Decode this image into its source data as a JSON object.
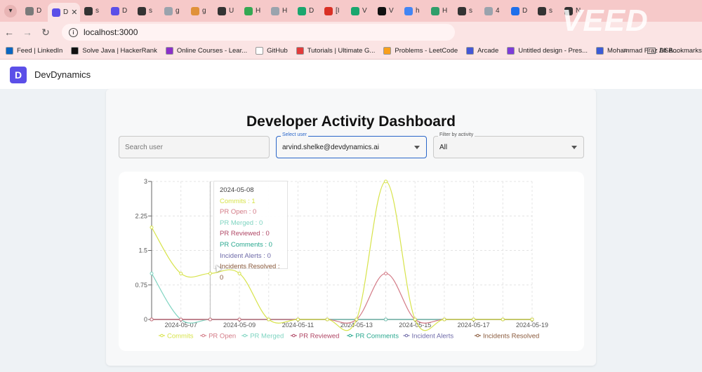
{
  "browser": {
    "tabs": [
      {
        "icon": "gear-icon",
        "color": "#7a7a7a",
        "label": "D"
      },
      {
        "icon": "app-icon",
        "color": "#5b4fe8",
        "label": "D",
        "active": true
      },
      {
        "icon": "github-icon",
        "color": "#333333",
        "label": "s"
      },
      {
        "icon": "devdynamics-icon",
        "color": "#5b4fe8",
        "label": "D"
      },
      {
        "icon": "github-icon",
        "color": "#333333",
        "label": "s"
      },
      {
        "icon": "globe-icon",
        "color": "#9aa3ad",
        "label": "g"
      },
      {
        "icon": "globe-icon",
        "color": "#e0913a",
        "label": "g"
      },
      {
        "icon": "github-icon",
        "color": "#333333",
        "label": "U"
      },
      {
        "icon": "app-icon",
        "color": "#34a853",
        "label": "H"
      },
      {
        "icon": "globe-icon",
        "color": "#9aa3ad",
        "label": "H"
      },
      {
        "icon": "app-icon",
        "color": "#1aa66e",
        "label": "D"
      },
      {
        "icon": "gmail-icon",
        "color": "#d93025",
        "label": "[I"
      },
      {
        "icon": "app-icon",
        "color": "#1aa66e",
        "label": "V"
      },
      {
        "icon": "app-icon",
        "color": "#111111",
        "label": "V"
      },
      {
        "icon": "google-icon",
        "color": "#4285f4",
        "label": "h"
      },
      {
        "icon": "app-icon",
        "color": "#2f9e6a",
        "label": "H"
      },
      {
        "icon": "github-icon",
        "color": "#333333",
        "label": "s"
      },
      {
        "icon": "globe-icon",
        "color": "#9aa3ad",
        "label": "4"
      },
      {
        "icon": "react-icon",
        "color": "#1f6feb",
        "label": "D"
      },
      {
        "icon": "github-icon",
        "color": "#333333",
        "label": "s"
      },
      {
        "icon": "app-icon",
        "color": "#333333",
        "label": "N"
      }
    ],
    "active_tab_close": "✕",
    "url": "localhost:3000",
    "bookmarks": [
      {
        "label": "Feed | LinkedIn",
        "color": "#0a66c2"
      },
      {
        "label": "Solve Java | HackerRank",
        "color": "#111111"
      },
      {
        "label": "Online Courses - Lear...",
        "color": "#8b2fc9"
      },
      {
        "label": "GitHub",
        "color": "#ffffff"
      },
      {
        "label": "Tutorials | Ultimate G...",
        "color": "#e23b3b"
      },
      {
        "label": "Problems - LeetCode",
        "color": "#f89f1b"
      },
      {
        "label": "Arcade",
        "color": "#4457d6"
      },
      {
        "label": "Untitled design - Pres...",
        "color": "#7d3cd9"
      },
      {
        "label": "Mohammad Fraz DSA...",
        "color": "#3b5bd6"
      }
    ],
    "bookmarks_more": "»",
    "all_bookmarks": "All Bookmarks",
    "watermark": "VEED"
  },
  "app": {
    "brand": "DevDynamics",
    "title": "Developer Activity Dashboard",
    "search": {
      "placeholder": "Search user"
    },
    "select_user": {
      "label": "Select user",
      "value": "arvind.shelke@devdynamics.ai"
    },
    "filter": {
      "label": "Filter by activity",
      "value": "All"
    }
  },
  "tooltip": {
    "date": "2024-05-08",
    "rows": [
      {
        "text": "Commits : 1",
        "color": "#d7e34a"
      },
      {
        "text": "PR Open : 0",
        "color": "#d37a86"
      },
      {
        "text": "PR Merged : 0",
        "color": "#7fd4c1"
      },
      {
        "text": "PR Reviewed : 0",
        "color": "#b04866"
      },
      {
        "text": "PR Comments : 0",
        "color": "#29a88f"
      },
      {
        "text": "Incident Alerts : 0",
        "color": "#6e6aa8"
      },
      {
        "text": "Incidents Resolved : 0",
        "color": "#8a5a3c"
      }
    ]
  },
  "chart_data": {
    "type": "line",
    "x": [
      "2024-05-06",
      "2024-05-07",
      "2024-05-08",
      "2024-05-09",
      "2024-05-10",
      "2024-05-11",
      "2024-05-12",
      "2024-05-13",
      "2024-05-14",
      "2024-05-15",
      "2024-05-16",
      "2024-05-17",
      "2024-05-18",
      "2024-05-19"
    ],
    "xticks": [
      "2024-05-07",
      "2024-05-09",
      "2024-05-11",
      "2024-05-13",
      "2024-05-15",
      "2024-05-17",
      "2024-05-19"
    ],
    "yticks": [
      "0",
      "0.75",
      "1.5",
      "2.25",
      "3"
    ],
    "ylim": [
      0,
      3
    ],
    "grid": true,
    "legend_position": "bottom",
    "series": [
      {
        "name": "Commits",
        "color": "#d7e34a",
        "values": [
          2,
          1,
          1,
          1,
          0,
          0,
          0,
          0,
          3,
          0,
          0,
          0,
          0,
          0
        ]
      },
      {
        "name": "PR Open",
        "color": "#d37a86",
        "values": [
          0,
          0,
          0,
          0,
          0,
          0,
          0,
          0,
          1,
          0,
          0,
          0,
          0,
          0
        ]
      },
      {
        "name": "PR Merged",
        "color": "#7fd4c1",
        "values": [
          1,
          0,
          0,
          0,
          0,
          0,
          0,
          0,
          0,
          0,
          0,
          0,
          0,
          0
        ]
      },
      {
        "name": "PR Reviewed",
        "color": "#b04866",
        "values": [
          0,
          0,
          0,
          0,
          0,
          0,
          0,
          0,
          0,
          0,
          0,
          0,
          0,
          0
        ]
      },
      {
        "name": "PR Comments",
        "color": "#29a88f",
        "values": [
          0,
          0,
          0,
          0,
          0,
          0,
          0,
          0,
          0,
          0,
          0,
          0,
          0,
          0
        ]
      },
      {
        "name": "Incident Alerts",
        "color": "#6e6aa8",
        "values": [
          0,
          0,
          0,
          0,
          0,
          0,
          0,
          0,
          0,
          0,
          0,
          0,
          0,
          0
        ]
      },
      {
        "name": "Incidents Resolved",
        "color": "#8a5a3c",
        "values": [
          0,
          0,
          0,
          0,
          0,
          0,
          0,
          0,
          0,
          0,
          0,
          0,
          0,
          0
        ]
      }
    ]
  }
}
